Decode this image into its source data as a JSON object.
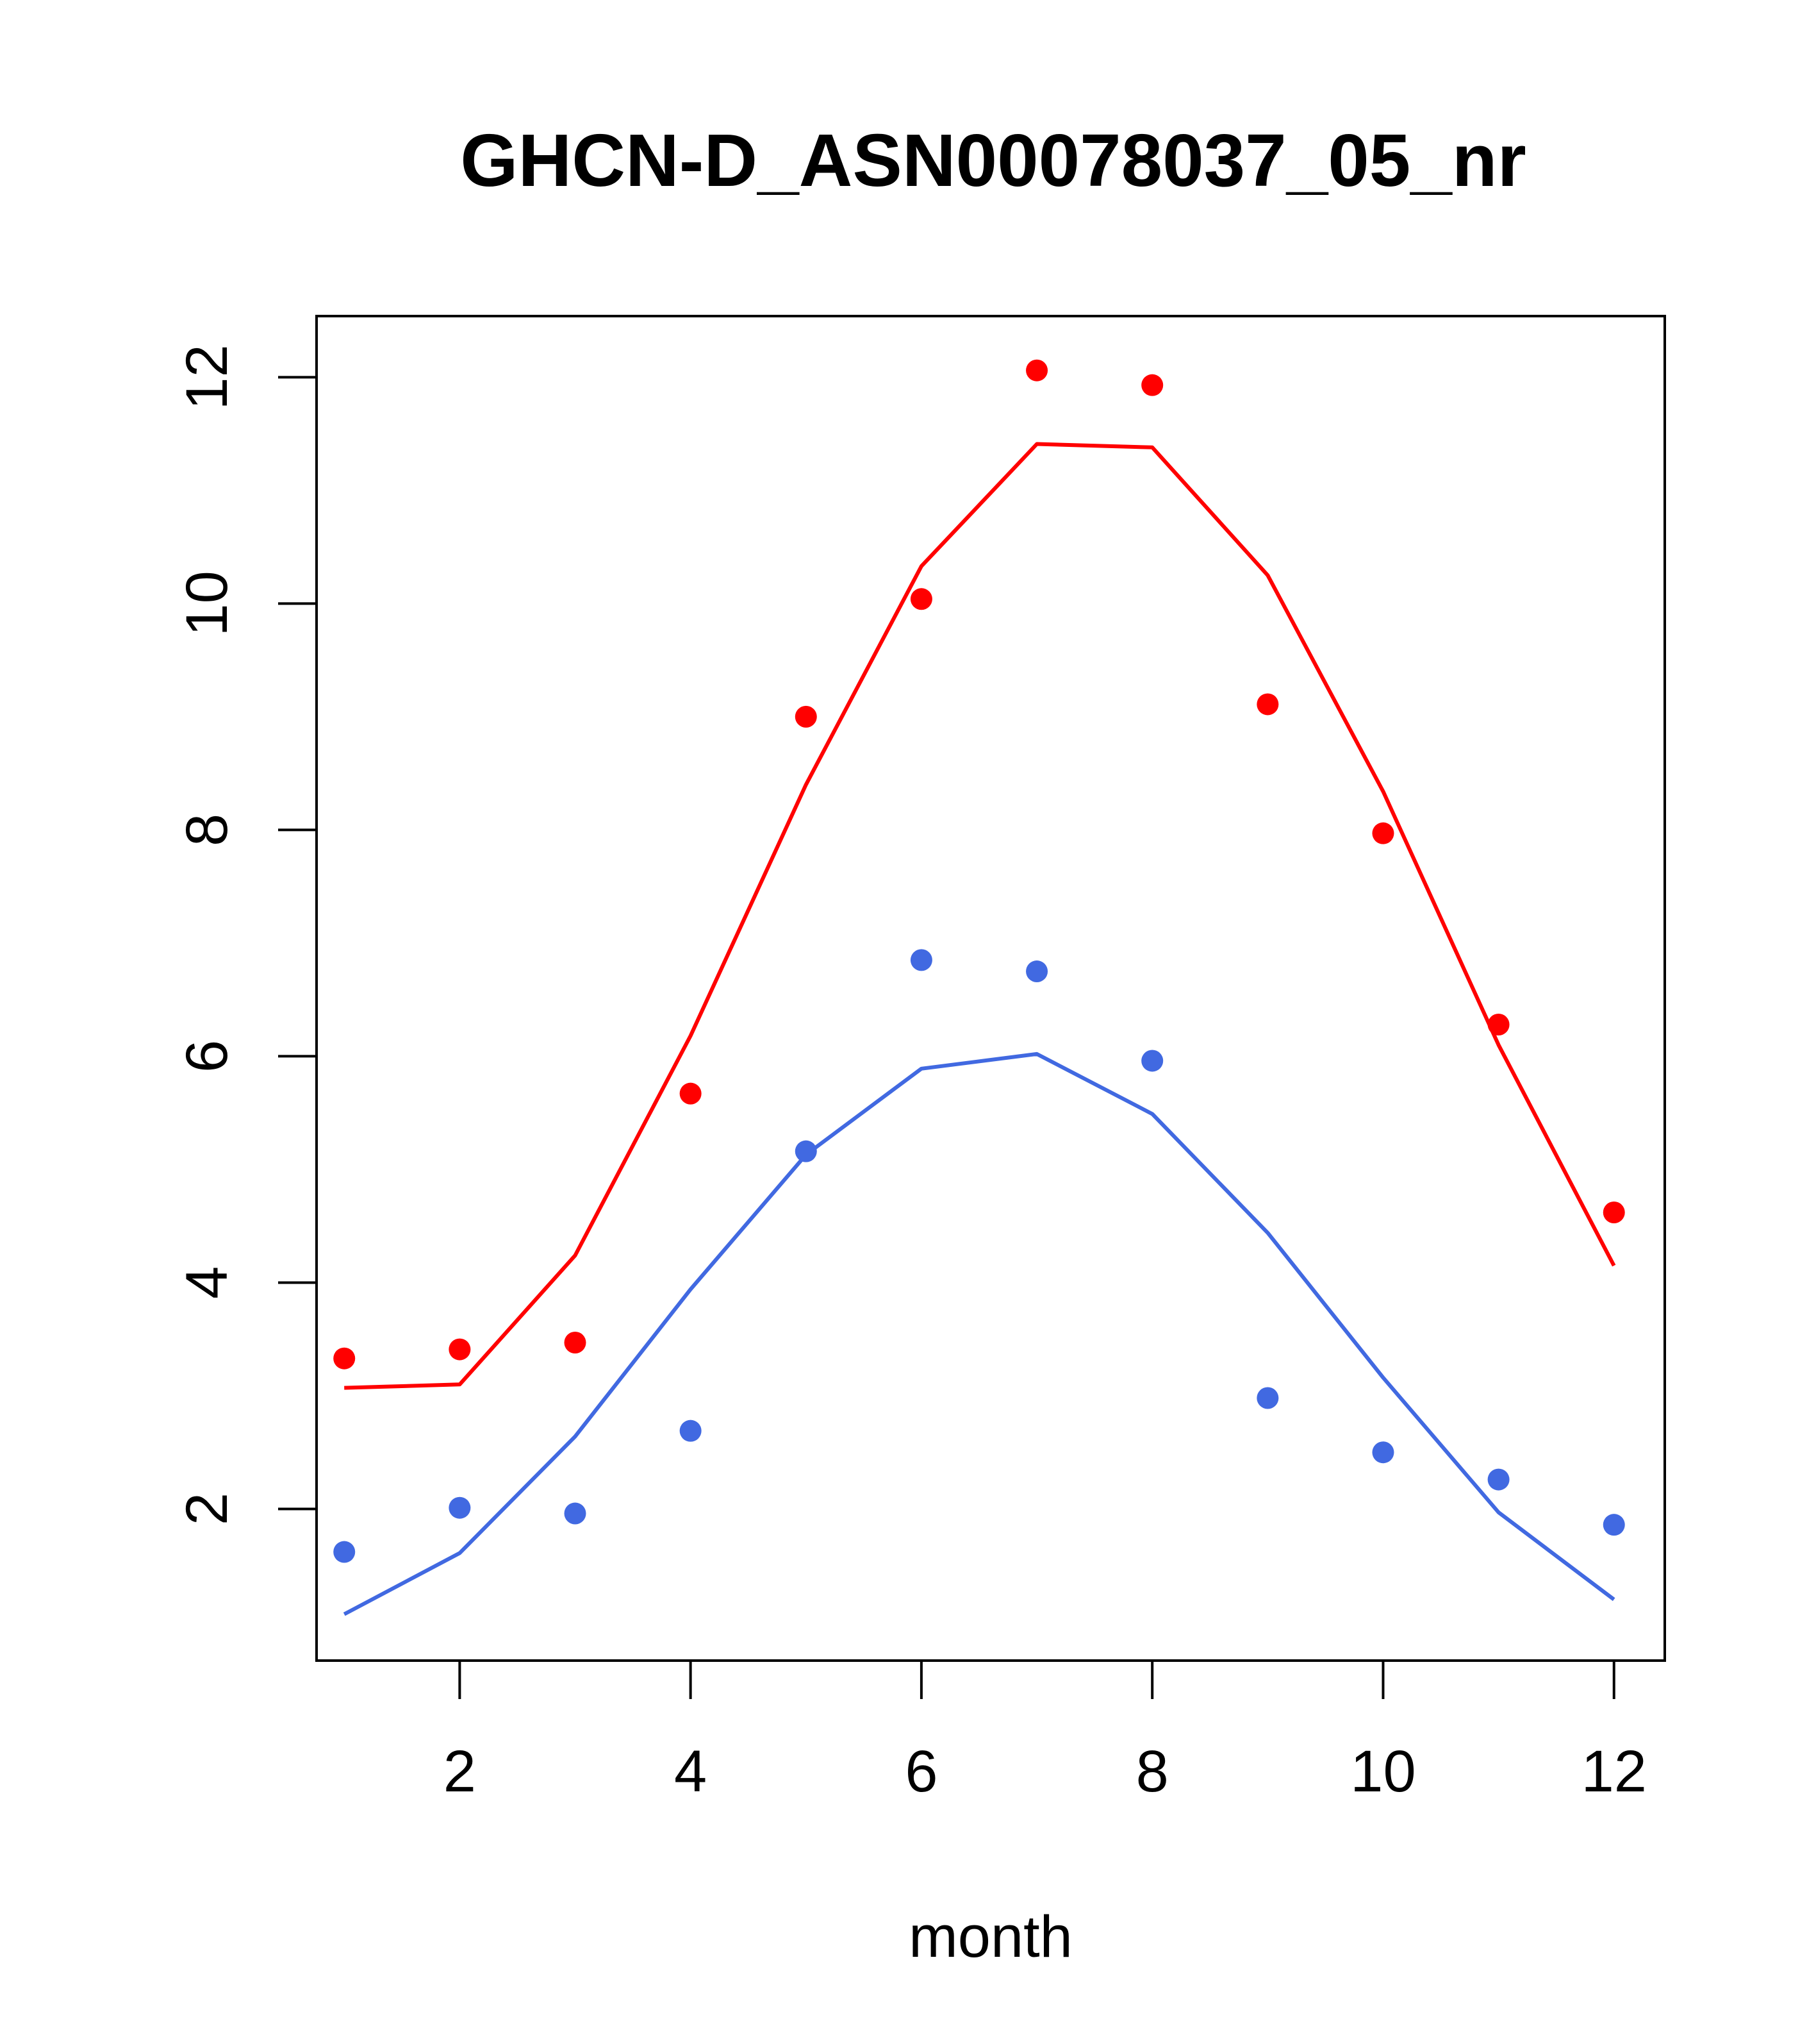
{
  "chart_data": {
    "type": "scatter",
    "title": "GHCN-D_ASN00078037_05_nr",
    "xlabel": "month",
    "ylabel": "",
    "xlim": [
      0.76,
      12.44
    ],
    "ylim": [
      0.66,
      12.54
    ],
    "x_ticks": [
      "2",
      "4",
      "6",
      "8",
      "10",
      "12"
    ],
    "y_ticks": [
      "2",
      "4",
      "6",
      "8",
      "10",
      "12"
    ],
    "grid": false,
    "legend": "none",
    "x": [
      1,
      2,
      3,
      4,
      5,
      6,
      7,
      8,
      9,
      10,
      11,
      12
    ],
    "series": [
      {
        "color": "#ff0000",
        "points": [
          3.33,
          3.41,
          3.47,
          5.67,
          9.0,
          10.04,
          12.06,
          11.93,
          9.11,
          7.97,
          6.28,
          4.62
        ],
        "line": [
          3.07,
          3.1,
          4.24,
          6.18,
          8.4,
          10.33,
          11.41,
          11.38,
          10.25,
          8.34,
          6.1,
          4.15
        ]
      },
      {
        "color": "#4169e1",
        "points": [
          1.62,
          2.01,
          1.96,
          2.69,
          5.16,
          6.85,
          6.75,
          5.96,
          2.98,
          2.5,
          2.26,
          1.86
        ],
        "line": [
          1.07,
          1.61,
          2.64,
          3.94,
          5.13,
          5.89,
          6.02,
          5.49,
          4.44,
          3.16,
          1.97,
          1.2
        ]
      }
    ]
  }
}
